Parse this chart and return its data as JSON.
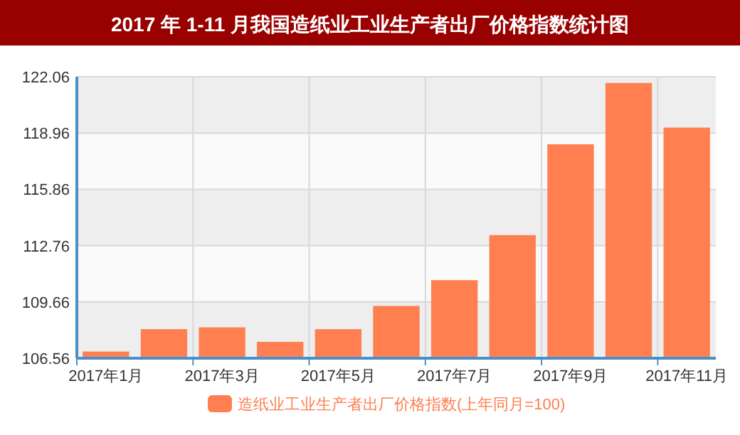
{
  "chart_data": {
    "type": "bar",
    "title": "2017 年 1-11 月我国造纸业工业生产者出厂价格指数统计图",
    "categories": [
      "2017年1月",
      null,
      "2017年3月",
      null,
      "2017年5月",
      null,
      "2017年7月",
      null,
      "2017年9月",
      null,
      "2017年11月"
    ],
    "series": [
      {
        "name": "造纸业工业生产者出厂价格指数(上年同月=100)",
        "color": "#ff7f50",
        "values": [
          106.93,
          108.16,
          108.26,
          107.46,
          108.16,
          109.44,
          110.86,
          113.34,
          118.34,
          121.72,
          119.26
        ]
      }
    ],
    "ylim": [
      106.56,
      122.06
    ],
    "yticks": [
      106.56,
      109.66,
      112.76,
      115.86,
      118.96,
      122.06
    ],
    "grid": true,
    "legend": "bottom"
  }
}
